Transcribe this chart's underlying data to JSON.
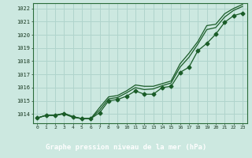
{
  "title": "Graphe pression niveau de la mer (hPa)",
  "bg_color": "#cce8e0",
  "grid_color": "#b0d4cc",
  "line_color": "#1a5c28",
  "title_bg": "#2a6b3a",
  "title_fg": "#ffffff",
  "xlim": [
    -0.5,
    23.5
  ],
  "ylim": [
    1013.3,
    1022.4
  ],
  "yticks": [
    1014,
    1015,
    1016,
    1017,
    1018,
    1019,
    1020,
    1021,
    1022
  ],
  "xticks": [
    0,
    1,
    2,
    3,
    4,
    5,
    6,
    7,
    8,
    9,
    10,
    11,
    12,
    13,
    14,
    15,
    16,
    17,
    18,
    19,
    20,
    21,
    22,
    23
  ],
  "series_marker": [
    1013.7,
    1013.9,
    1013.9,
    1014.0,
    1013.75,
    1013.65,
    1013.65,
    1014.1,
    1015.0,
    1015.1,
    1015.35,
    1015.75,
    1015.5,
    1015.5,
    1016.0,
    1016.1,
    1017.15,
    1017.55,
    1018.8,
    1019.35,
    1020.05,
    1020.95,
    1021.45,
    1021.65
  ],
  "series_line1": [
    1013.7,
    1013.9,
    1013.9,
    1014.05,
    1013.8,
    1013.65,
    1013.65,
    1014.3,
    1015.15,
    1015.25,
    1015.6,
    1016.0,
    1015.85,
    1015.9,
    1016.15,
    1016.35,
    1017.55,
    1018.3,
    1019.3,
    1020.4,
    1020.55,
    1021.35,
    1021.85,
    1022.15
  ],
  "series_line2": [
    1013.7,
    1013.9,
    1013.9,
    1014.05,
    1013.8,
    1013.65,
    1013.65,
    1014.5,
    1015.3,
    1015.4,
    1015.75,
    1016.2,
    1016.1,
    1016.1,
    1016.3,
    1016.5,
    1017.8,
    1018.6,
    1019.5,
    1020.7,
    1020.8,
    1021.6,
    1022.0,
    1022.3
  ]
}
